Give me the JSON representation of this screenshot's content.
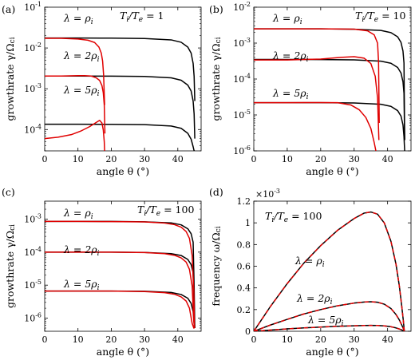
{
  "colors": {
    "black_curve": "#000000",
    "red_curve": "#e00000"
  },
  "chart_data": [
    {
      "type": "line",
      "panel_label": "(a)",
      "ylabel": "growthrate γ/Ω",
      "ylabel_sub": "ci",
      "xlabel": "angle θ (°)",
      "yscale": "log",
      "xlim": [
        0,
        47
      ],
      "ylim": [
        3e-05,
        0.1
      ],
      "xticks": [
        0,
        10,
        20,
        30,
        40
      ],
      "xtick_labels": [
        "0",
        "10",
        "20",
        "30",
        "40"
      ],
      "yticks": [
        0.1,
        0.01,
        0.001,
        0.0001
      ],
      "ytick_labels": [
        {
          "base": "10",
          "exp": "-1"
        },
        {
          "base": "10",
          "exp": "-2"
        },
        {
          "base": "10",
          "exp": "-3"
        },
        {
          "base": "10",
          "exp": "-4"
        }
      ],
      "annotation": {
        "text": "T",
        "sub": "i",
        "mid": "/T",
        "sub2": "e",
        "tail": " = 1"
      },
      "series_labels": [
        {
          "text": "λ = ρ",
          "sub": "i"
        },
        {
          "text": "λ = 2ρ",
          "sub": "i"
        },
        {
          "text": "λ = 5ρ",
          "sub": "i"
        }
      ],
      "series": [
        {
          "color": "black",
          "x": [
            0,
            10,
            20,
            30,
            38,
            41,
            43,
            44,
            44.6,
            44.9,
            45.1
          ],
          "y": [
            0.0175,
            0.0175,
            0.0174,
            0.0171,
            0.0158,
            0.0138,
            0.0105,
            0.0075,
            0.0042,
            0.002,
            0.0005
          ]
        },
        {
          "color": "black",
          "x": [
            0,
            10,
            20,
            30,
            38,
            41,
            43,
            44,
            44.6,
            44.9,
            45.1
          ],
          "y": [
            0.00205,
            0.00205,
            0.00204,
            0.002,
            0.00185,
            0.00162,
            0.00123,
            0.00088,
            0.0005,
            0.00024,
            6e-05
          ]
        },
        {
          "color": "black",
          "x": [
            0,
            10,
            20,
            30,
            38,
            41,
            43,
            44,
            44.6,
            44.9,
            45.1
          ],
          "y": [
            0.000135,
            0.000135,
            0.000134,
            0.000132,
            0.000122,
            0.000107,
            8.1e-05,
            5.8e-05,
            3.8e-05,
            3e-05,
            3e-05
          ]
        },
        {
          "color": "red",
          "x": [
            0,
            5,
            10,
            13,
            15,
            16.3,
            17,
            17.4,
            17.7,
            18
          ],
          "y": [
            0.0172,
            0.0172,
            0.0166,
            0.0155,
            0.0136,
            0.0105,
            0.0075,
            0.0048,
            0.0022,
            0.0004
          ]
        },
        {
          "color": "red",
          "x": [
            0,
            5,
            10,
            12,
            14,
            15.5,
            16.5,
            17.2,
            17.6,
            17.9,
            18.1
          ],
          "y": [
            0.00205,
            0.00205,
            0.0021,
            0.0021,
            0.00205,
            0.00185,
            0.0016,
            0.0012,
            0.0008,
            0.0004,
            8e-05
          ]
        },
        {
          "color": "red",
          "x": [
            0,
            4,
            8,
            11,
            13.5,
            15.3,
            16.5,
            17.2,
            17.6,
            17.9,
            18
          ],
          "y": [
            6e-05,
            6.5e-05,
            7.5e-05,
            9.3e-05,
            0.000118,
            0.000146,
            0.000168,
            0.000145,
            9.8e-05,
            5e-05,
            3e-05
          ]
        }
      ]
    },
    {
      "type": "line",
      "panel_label": "(b)",
      "ylabel": "growthrate γ/Ω",
      "ylabel_sub": "ci",
      "xlabel": "angle θ (°)",
      "yscale": "log",
      "xlim": [
        0,
        47
      ],
      "ylim": [
        1e-06,
        0.01
      ],
      "xticks": [
        0,
        10,
        20,
        30,
        40
      ],
      "xtick_labels": [
        "0",
        "10",
        "20",
        "30",
        "40"
      ],
      "yticks": [
        0.01,
        0.001,
        0.0001,
        1e-05,
        1e-06
      ],
      "ytick_labels": [
        {
          "base": "10",
          "exp": "-2"
        },
        {
          "base": "10",
          "exp": "-3"
        },
        {
          "base": "10",
          "exp": "-4"
        },
        {
          "base": "10",
          "exp": "-5"
        },
        {
          "base": "10",
          "exp": "-6"
        }
      ],
      "annotation": {
        "text": "T",
        "sub": "i",
        "mid": "/T",
        "sub2": "e",
        "tail": " = 10"
      },
      "series_labels": [
        {
          "text": "λ = ρ",
          "sub": "i"
        },
        {
          "text": "λ = 2ρ",
          "sub": "i"
        },
        {
          "text": "λ = 5ρ",
          "sub": "i"
        }
      ],
      "series": [
        {
          "color": "black",
          "x": [
            0,
            10,
            20,
            30,
            38,
            41,
            43,
            44,
            44.6,
            44.9,
            45.1
          ],
          "y": [
            0.0025,
            0.0025,
            0.00249,
            0.00244,
            0.00225,
            0.00196,
            0.0015,
            0.00105,
            0.0006,
            0.00028,
            2e-06
          ]
        },
        {
          "color": "black",
          "x": [
            0,
            10,
            20,
            30,
            38,
            41,
            43,
            44,
            44.6,
            44.9,
            45.1
          ],
          "y": [
            0.00035,
            0.00035,
            0.000349,
            0.000342,
            0.000315,
            0.000275,
            0.00021,
            0.000148,
            8.4e-05,
            4e-05,
            2e-06
          ]
        },
        {
          "color": "black",
          "x": [
            0,
            10,
            20,
            30,
            38,
            41,
            43,
            44,
            44.6,
            44.9,
            45.1
          ],
          "y": [
            2.2e-05,
            2.2e-05,
            2.19e-05,
            2.15e-05,
            1.98e-05,
            1.73e-05,
            1.32e-05,
            9.3e-06,
            5.3e-06,
            2.5e-06,
            1e-06
          ]
        },
        {
          "color": "red",
          "x": [
            0,
            10,
            20,
            30,
            34,
            36,
            37,
            37.3,
            37.5
          ],
          "y": [
            0.0025,
            0.0025,
            0.0025,
            0.00245,
            0.0022,
            0.0017,
            0.001,
            0.0003,
            6e-06
          ]
        },
        {
          "color": "red",
          "x": [
            0,
            10,
            20,
            26,
            30,
            33,
            35,
            36.3,
            37,
            37.4
          ],
          "y": [
            0.00034,
            0.00034,
            0.00036,
            0.0004,
            0.00042,
            0.00038,
            0.00027,
            0.00012,
            3e-05,
            2e-06
          ]
        },
        {
          "color": "red",
          "x": [
            0,
            10,
            20,
            25,
            29,
            31.5,
            33.5,
            35,
            36,
            36.5
          ],
          "y": [
            2.2e-05,
            2.2e-05,
            2.21e-05,
            2.2e-05,
            1.9e-05,
            1.4e-05,
            8.5e-06,
            4.2e-06,
            1.7e-06,
            1e-06
          ]
        }
      ]
    },
    {
      "type": "line",
      "panel_label": "(c)",
      "ylabel": "growthrate γ/Ω",
      "ylabel_sub": "ci",
      "xlabel": "angle θ (°)",
      "yscale": "log",
      "xlim": [
        0,
        47
      ],
      "ylim": [
        4e-07,
        0.0035
      ],
      "xticks": [
        0,
        10,
        20,
        30,
        40
      ],
      "xtick_labels": [
        "0",
        "10",
        "20",
        "30",
        "40"
      ],
      "yticks": [
        0.001,
        0.0001,
        1e-05,
        1e-06
      ],
      "ytick_labels": [
        {
          "base": "10",
          "exp": "-3"
        },
        {
          "base": "10",
          "exp": "-4"
        },
        {
          "base": "10",
          "exp": "-5"
        },
        {
          "base": "10",
          "exp": "-6"
        }
      ],
      "annotation": {
        "text": "T",
        "sub": "i",
        "mid": "/T",
        "sub2": "e",
        "tail": " = 100"
      },
      "series_labels": [
        {
          "text": "λ = ρ",
          "sub": "i"
        },
        {
          "text": "λ = 2ρ",
          "sub": "i"
        },
        {
          "text": "λ = 5ρ",
          "sub": "i"
        }
      ],
      "series": [
        {
          "color": "black",
          "x": [
            0,
            10,
            20,
            30,
            38,
            41,
            43,
            44,
            44.6,
            44.9,
            45.1
          ],
          "y": [
            0.00085,
            0.00085,
            0.00085,
            0.00083,
            0.00077,
            0.00067,
            0.00051,
            0.00036,
            0.0002,
            9.5e-06,
            5e-07
          ]
        },
        {
          "color": "black",
          "x": [
            0,
            10,
            20,
            30,
            38,
            41,
            43,
            44,
            44.6,
            44.9,
            45.1
          ],
          "y": [
            0.0001,
            0.0001,
            0.0001,
            9.8e-05,
            9e-05,
            7.9e-05,
            6e-05,
            4.2e-05,
            2.4e-05,
            1.1e-06,
            5e-07
          ]
        },
        {
          "color": "black",
          "x": [
            0,
            10,
            20,
            30,
            38,
            41,
            43,
            44,
            44.6,
            44.9,
            45.1
          ],
          "y": [
            6.6e-06,
            6.6e-06,
            6.6e-06,
            6.5e-06,
            6e-06,
            5.2e-06,
            4e-06,
            2.8e-06,
            1.6e-06,
            7e-07,
            5e-07
          ]
        },
        {
          "color": "red",
          "x": [
            0,
            10,
            20,
            30,
            36,
            39,
            41,
            42.5,
            43.5,
            44.3,
            44.8,
            45
          ],
          "y": [
            0.00085,
            0.00085,
            0.00084,
            0.00082,
            0.00076,
            0.00068,
            0.00057,
            0.00042,
            0.00026,
            8e-05,
            7e-06,
            5e-07
          ]
        },
        {
          "color": "red",
          "x": [
            0,
            10,
            20,
            30,
            36,
            39,
            41,
            42.5,
            43.5,
            44.3,
            44.8,
            45
          ],
          "y": [
            0.0001,
            0.0001,
            0.0001,
            9.7e-05,
            9e-05,
            8e-05,
            6.7e-05,
            5e-05,
            3e-05,
            9.5e-06,
            8e-07,
            5e-07
          ]
        },
        {
          "color": "red",
          "x": [
            0,
            10,
            20,
            30,
            36,
            39,
            41,
            42.5,
            43.5,
            44.3,
            44.8,
            45
          ],
          "y": [
            6.6e-06,
            6.6e-06,
            6.6e-06,
            6.4e-06,
            5.9e-06,
            5.3e-06,
            4.4e-06,
            3.3e-06,
            2e-06,
            7e-07,
            5e-07,
            5e-07
          ]
        }
      ]
    },
    {
      "type": "line",
      "panel_label": "(d)",
      "ylabel": "frequency ω/Ω",
      "ylabel_sub": "ci",
      "xlabel": "angle θ (°)",
      "yscale": "linear",
      "y_multiplier": {
        "base": "×10",
        "exp": "-3"
      },
      "xlim": [
        0,
        47
      ],
      "ylim": [
        0,
        0.0012
      ],
      "xticks": [
        0,
        10,
        20,
        30,
        40
      ],
      "xtick_labels": [
        "0",
        "10",
        "20",
        "30",
        "40"
      ],
      "yticks": [
        0,
        0.0002,
        0.0004,
        0.0006,
        0.0008,
        0.001,
        0.0012
      ],
      "ytick_labels": [
        {
          "base": "0",
          "exp": ""
        },
        {
          "base": "0.2",
          "exp": ""
        },
        {
          "base": "0.4",
          "exp": ""
        },
        {
          "base": "0.6",
          "exp": ""
        },
        {
          "base": "0.8",
          "exp": ""
        },
        {
          "base": "1",
          "exp": ""
        },
        {
          "base": "1.2",
          "exp": ""
        }
      ],
      "annotation": {
        "text": "T",
        "sub": "i",
        "mid": "/T",
        "sub2": "e",
        "tail": " = 100"
      },
      "series_labels": [
        {
          "text": "λ = ρ",
          "sub": "i"
        },
        {
          "text": "λ = 2ρ",
          "sub": "i"
        },
        {
          "text": "λ = 5ρ",
          "sub": "i"
        }
      ],
      "series": [
        {
          "color": "black",
          "x": [
            0,
            5,
            10,
            15,
            20,
            25,
            30,
            33,
            35,
            37,
            39,
            41,
            42.5,
            43.5,
            44.2,
            44.7,
            45
          ],
          "y": [
            0,
            0.00023,
            0.00044,
            0.00063,
            0.00079,
            0.00093,
            0.00104,
            0.00109,
            0.0011,
            0.00108,
            0.001,
            0.00083,
            0.00062,
            0.00042,
            0.00024,
            0.0001,
            0
          ]
        },
        {
          "color": "black",
          "x": [
            0,
            5,
            10,
            15,
            20,
            25,
            30,
            33,
            35,
            37,
            39,
            41,
            42.5,
            43.5,
            44.2,
            44.7,
            45
          ],
          "y": [
            0,
            5.8e-05,
            0.00011,
            0.00016,
            0.0002,
            0.000235,
            0.00026,
            0.00027,
            0.000272,
            0.000268,
            0.00025,
            0.00021,
            0.000155,
            0.000105,
            6e-05,
            2.5e-05,
            0
          ]
        },
        {
          "color": "black",
          "x": [
            0,
            5,
            10,
            15,
            20,
            25,
            30,
            33,
            35,
            37,
            39,
            41,
            42.5,
            43.5,
            44.2,
            44.7,
            45
          ],
          "y": [
            0,
            1.1e-05,
            2.2e-05,
            3.1e-05,
            3.9e-05,
            4.6e-05,
            5.1e-05,
            5.3e-05,
            5.4e-05,
            5.3e-05,
            5e-05,
            4.2e-05,
            3.1e-05,
            2.1e-05,
            1.2e-05,
            5e-06,
            0
          ]
        },
        {
          "color": "red",
          "dashed": true,
          "x": [
            0,
            5,
            10,
            15,
            20,
            25,
            30,
            33,
            35,
            37,
            39,
            41,
            42.5,
            43.5,
            44.2,
            44.7,
            45
          ],
          "y": [
            0,
            0.00023,
            0.00044,
            0.00063,
            0.00079,
            0.00093,
            0.00104,
            0.00109,
            0.0011,
            0.00108,
            0.001,
            0.00083,
            0.00062,
            0.00042,
            0.00024,
            0.0001,
            0
          ]
        },
        {
          "color": "red",
          "dashed": true,
          "x": [
            0,
            5,
            10,
            15,
            20,
            25,
            30,
            33,
            35,
            37,
            39,
            41,
            42.5,
            43.5,
            44.2,
            44.7,
            45
          ],
          "y": [
            0,
            5.8e-05,
            0.00011,
            0.00016,
            0.0002,
            0.000235,
            0.00026,
            0.00027,
            0.000272,
            0.000268,
            0.00025,
            0.00021,
            0.000155,
            0.000105,
            6e-05,
            2.5e-05,
            0
          ]
        },
        {
          "color": "red",
          "dashed": true,
          "x": [
            0,
            5,
            10,
            15,
            20,
            25,
            30,
            33,
            35,
            37,
            39,
            41,
            42.5,
            43.5,
            44.2,
            44.7,
            45
          ],
          "y": [
            0,
            1.1e-05,
            2.2e-05,
            3.1e-05,
            3.9e-05,
            4.6e-05,
            5.1e-05,
            5.3e-05,
            5.4e-05,
            5.3e-05,
            5e-05,
            4.2e-05,
            3.1e-05,
            2.1e-05,
            1.2e-05,
            5e-06,
            0
          ]
        }
      ]
    }
  ]
}
